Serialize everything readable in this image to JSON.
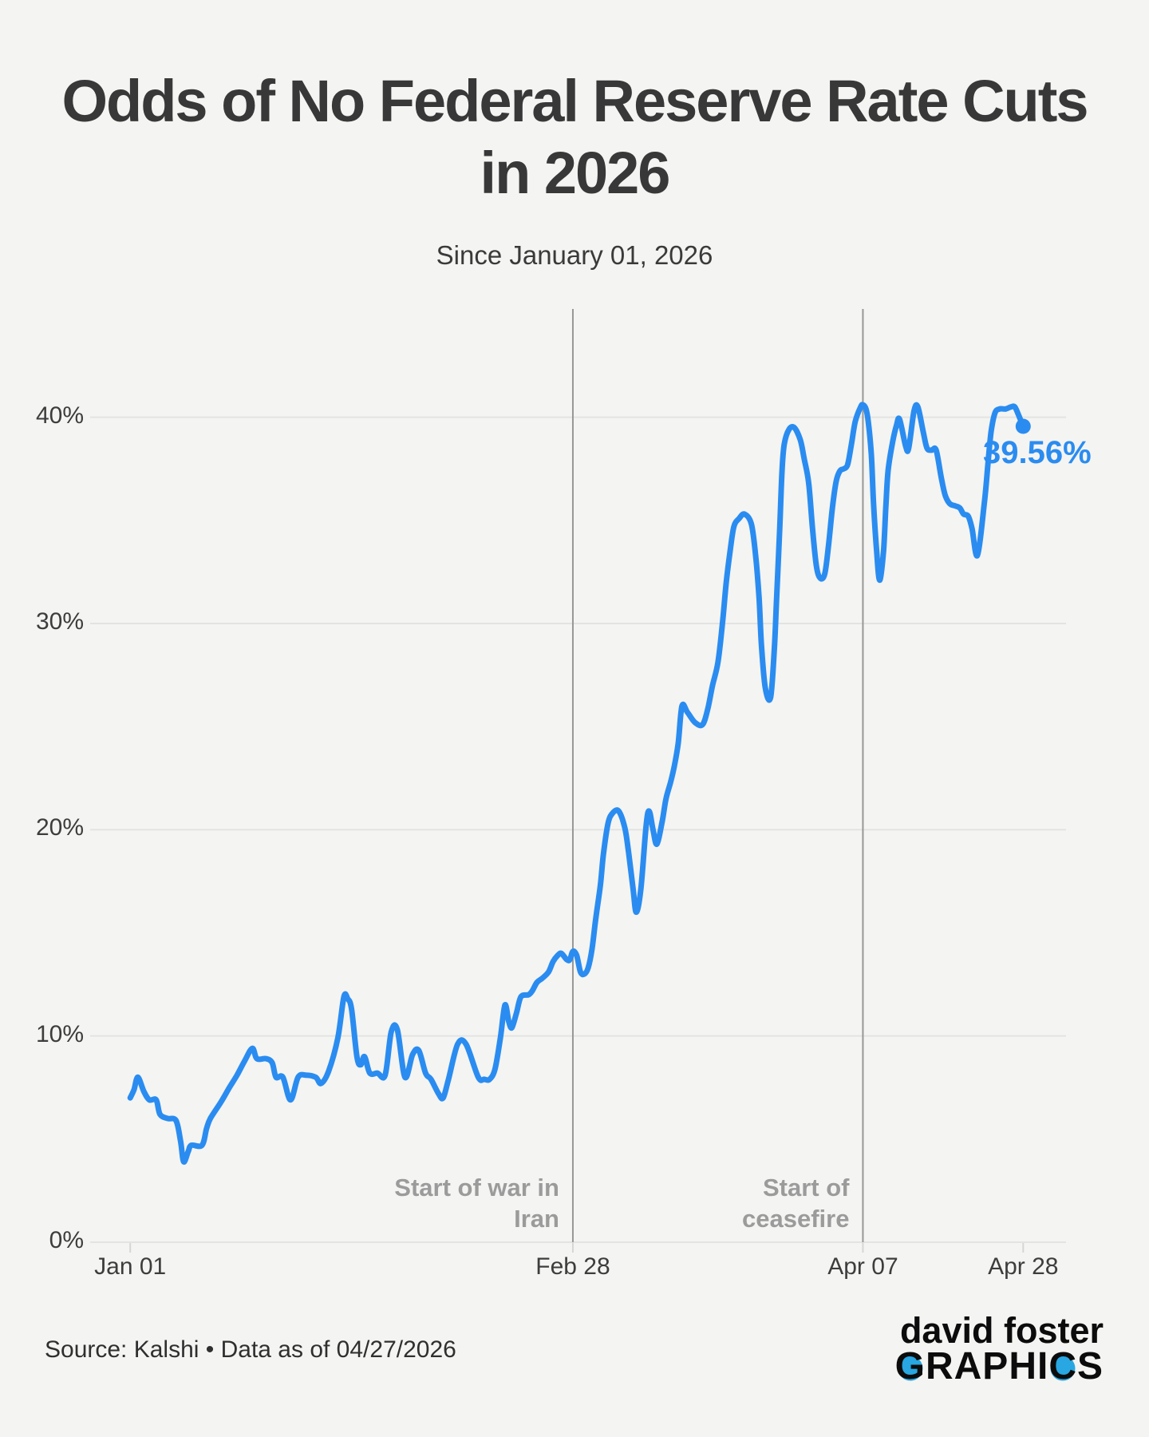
{
  "header": {
    "title_line1": "Odds of No Federal Reserve Rate Cuts",
    "title_line2": "in 2026",
    "subtitle": "Since January 01, 2026"
  },
  "footer": {
    "source": "Source: Kalshi • Data as of 04/27/2026",
    "logo_line1": "david foster",
    "logo_word_g": "G",
    "logo_word_mid": "RAPHI",
    "logo_word_c": "C",
    "logo_word_s": "S"
  },
  "colors": {
    "background": "#f4f4f2",
    "line": "#2a8cf0",
    "gridline": "#e3e3e1",
    "tick": "#d6d6d4",
    "annotation_line": "#979795",
    "annotation_text": "#9b9b9b",
    "axis_text": "#3d3d3d",
    "title_text": "#383838",
    "logo_ball": "#28a7e2"
  },
  "chart_data": {
    "type": "line",
    "title": "Odds of No Federal Reserve Rate Cuts in 2026",
    "subtitle": "Since January 01, 2026",
    "xlabel": "",
    "ylabel": "",
    "grid": "horizontal-only",
    "x_axis": {
      "unit": "days since Jan 01, 2026",
      "tick_labels": [
        "Jan 01",
        "Feb 28",
        "Apr 07",
        "Apr 28"
      ],
      "tick_days": [
        0,
        58,
        96,
        117
      ]
    },
    "y_axis": {
      "tick_labels": [
        "0%",
        "10%",
        "20%",
        "30%",
        "40%"
      ],
      "tick_values": [
        0,
        10,
        20,
        30,
        40
      ],
      "ylim": [
        0,
        45
      ]
    },
    "annotations": [
      {
        "day": 58,
        "label_lines": "Start of war in\nIran"
      },
      {
        "day": 96,
        "label_lines": "Start of\nceasefire"
      }
    ],
    "last_value_label": "39.56%",
    "last_value": 39.56,
    "series": [
      {
        "name": "Odds of no Fed rate cuts in 2026 (%)",
        "points": [
          [
            0,
            7.0
          ],
          [
            0.5,
            7.4
          ],
          [
            1,
            8.0
          ],
          [
            1.8,
            7.3
          ],
          [
            2.5,
            6.9
          ],
          [
            3.4,
            6.9
          ],
          [
            3.9,
            6.2
          ],
          [
            4.9,
            6.0
          ],
          [
            6,
            5.9
          ],
          [
            6.6,
            4.9
          ],
          [
            7,
            3.9
          ],
          [
            7.6,
            4.4
          ],
          [
            8,
            4.7
          ],
          [
            9.4,
            4.7
          ],
          [
            10,
            5.5
          ],
          [
            10.5,
            6.0
          ],
          [
            11.9,
            6.8
          ],
          [
            13,
            7.5
          ],
          [
            14,
            8.1
          ],
          [
            15,
            8.8
          ],
          [
            16,
            9.4
          ],
          [
            16.6,
            8.9
          ],
          [
            17.8,
            8.9
          ],
          [
            18.6,
            8.7
          ],
          [
            19.1,
            8.0
          ],
          [
            20,
            8.0
          ],
          [
            21,
            6.9
          ],
          [
            22,
            8.0
          ],
          [
            23,
            8.1
          ],
          [
            24.3,
            8.0
          ],
          [
            25,
            7.7
          ],
          [
            26,
            8.3
          ],
          [
            27.2,
            9.9
          ],
          [
            28,
            11.9
          ],
          [
            28.5,
            11.8
          ],
          [
            29,
            11.3
          ],
          [
            29.7,
            9.0
          ],
          [
            30.2,
            8.6
          ],
          [
            30.7,
            9.0
          ],
          [
            31.4,
            8.2
          ],
          [
            32.4,
            8.2
          ],
          [
            33.4,
            8.1
          ],
          [
            34.2,
            10.2
          ],
          [
            35,
            10.3
          ],
          [
            36,
            8.0
          ],
          [
            37,
            9.1
          ],
          [
            37.8,
            9.3
          ],
          [
            38.7,
            8.2
          ],
          [
            39.4,
            7.9
          ],
          [
            40.4,
            7.2
          ],
          [
            41,
            7.0
          ],
          [
            41.7,
            7.9
          ],
          [
            42.9,
            9.6
          ],
          [
            44,
            9.6
          ],
          [
            45.6,
            8.0
          ],
          [
            46.4,
            7.9
          ],
          [
            47.1,
            7.9
          ],
          [
            47.8,
            8.4
          ],
          [
            48.5,
            9.9
          ],
          [
            49.1,
            11.5
          ],
          [
            49.6,
            10.7
          ],
          [
            50,
            10.4
          ],
          [
            50.6,
            11.1
          ],
          [
            51.2,
            11.9
          ],
          [
            52.2,
            12.0
          ],
          [
            52.7,
            12.2
          ],
          [
            53.3,
            12.6
          ],
          [
            54,
            12.8
          ],
          [
            54.8,
            13.1
          ],
          [
            55.4,
            13.6
          ],
          [
            56,
            13.9
          ],
          [
            56.5,
            14.0
          ],
          [
            57.2,
            13.7
          ],
          [
            57.6,
            13.7
          ],
          [
            58,
            14.1
          ],
          [
            58.5,
            13.9
          ],
          [
            59,
            13.1
          ],
          [
            59.5,
            13.0
          ],
          [
            60,
            13.3
          ],
          [
            60.5,
            14.2
          ],
          [
            61,
            15.7
          ],
          [
            61.6,
            17.3
          ],
          [
            62,
            18.8
          ],
          [
            62.6,
            20.3
          ],
          [
            63.2,
            20.8
          ],
          [
            64,
            20.9
          ],
          [
            64.8,
            20.1
          ],
          [
            65.3,
            18.9
          ],
          [
            65.9,
            17.1
          ],
          [
            66.3,
            16.0
          ],
          [
            66.9,
            17.1
          ],
          [
            67.6,
            20.2
          ],
          [
            68,
            20.9
          ],
          [
            68.5,
            20.0
          ],
          [
            69,
            19.3
          ],
          [
            69.7,
            20.4
          ],
          [
            70.2,
            21.5
          ],
          [
            70.8,
            22.3
          ],
          [
            71.3,
            23.1
          ],
          [
            71.8,
            24.2
          ],
          [
            72.3,
            26.0
          ],
          [
            73,
            25.7
          ],
          [
            74,
            25.2
          ],
          [
            75,
            25.1
          ],
          [
            75.7,
            25.9
          ],
          [
            76.3,
            27.0
          ],
          [
            77,
            28.1
          ],
          [
            77.6,
            30.0
          ],
          [
            78.1,
            32.0
          ],
          [
            78.6,
            33.5
          ],
          [
            79.1,
            34.7
          ],
          [
            79.8,
            35.1
          ],
          [
            80.5,
            35.3
          ],
          [
            81.4,
            34.8
          ],
          [
            82,
            33.1
          ],
          [
            82.4,
            31.2
          ],
          [
            82.7,
            29.0
          ],
          [
            83.2,
            26.9
          ],
          [
            83.9,
            26.4
          ],
          [
            84.4,
            28.8
          ],
          [
            84.7,
            31.3
          ],
          [
            85.1,
            34.6
          ],
          [
            85.4,
            37.4
          ],
          [
            85.7,
            38.7
          ],
          [
            86.3,
            39.4
          ],
          [
            87,
            39.5
          ],
          [
            87.8,
            38.9
          ],
          [
            88.3,
            38.0
          ],
          [
            88.9,
            36.8
          ],
          [
            89.4,
            34.6
          ],
          [
            89.9,
            32.8
          ],
          [
            90.4,
            32.2
          ],
          [
            91,
            32.4
          ],
          [
            91.5,
            33.8
          ],
          [
            92,
            35.6
          ],
          [
            92.5,
            36.9
          ],
          [
            93,
            37.4
          ],
          [
            93.5,
            37.5
          ],
          [
            94,
            37.7
          ],
          [
            94.5,
            38.7
          ],
          [
            95,
            39.8
          ],
          [
            95.7,
            40.5
          ],
          [
            96,
            40.6
          ],
          [
            96.4,
            40.4
          ],
          [
            96.7,
            39.8
          ],
          [
            97.1,
            38.2
          ],
          [
            97.4,
            35.8
          ],
          [
            97.8,
            33.5
          ],
          [
            98.2,
            32.1
          ],
          [
            98.7,
            33.5
          ],
          [
            99,
            35.6
          ],
          [
            99.3,
            37.4
          ],
          [
            99.9,
            38.8
          ],
          [
            100.4,
            39.6
          ],
          [
            100.8,
            39.9
          ],
          [
            101.6,
            38.6
          ],
          [
            102,
            38.5
          ],
          [
            102.7,
            40.3
          ],
          [
            103.2,
            40.5
          ],
          [
            103.9,
            39.3
          ],
          [
            104.4,
            38.5
          ],
          [
            105,
            38.4
          ],
          [
            105.6,
            38.4
          ],
          [
            106.3,
            37.0
          ],
          [
            106.8,
            36.2
          ],
          [
            107.4,
            35.8
          ],
          [
            108.1,
            35.7
          ],
          [
            108.7,
            35.6
          ],
          [
            109.2,
            35.3
          ],
          [
            109.8,
            35.2
          ],
          [
            110.3,
            34.6
          ],
          [
            111,
            33.3
          ],
          [
            111.9,
            35.8
          ],
          [
            112.4,
            37.8
          ],
          [
            112.8,
            39.3
          ],
          [
            113.3,
            40.2
          ],
          [
            113.9,
            40.4
          ],
          [
            114.7,
            40.4
          ],
          [
            115.4,
            40.5
          ],
          [
            115.9,
            40.5
          ],
          [
            116.4,
            40.1
          ],
          [
            117,
            39.56
          ]
        ]
      }
    ],
    "legend": "none"
  }
}
